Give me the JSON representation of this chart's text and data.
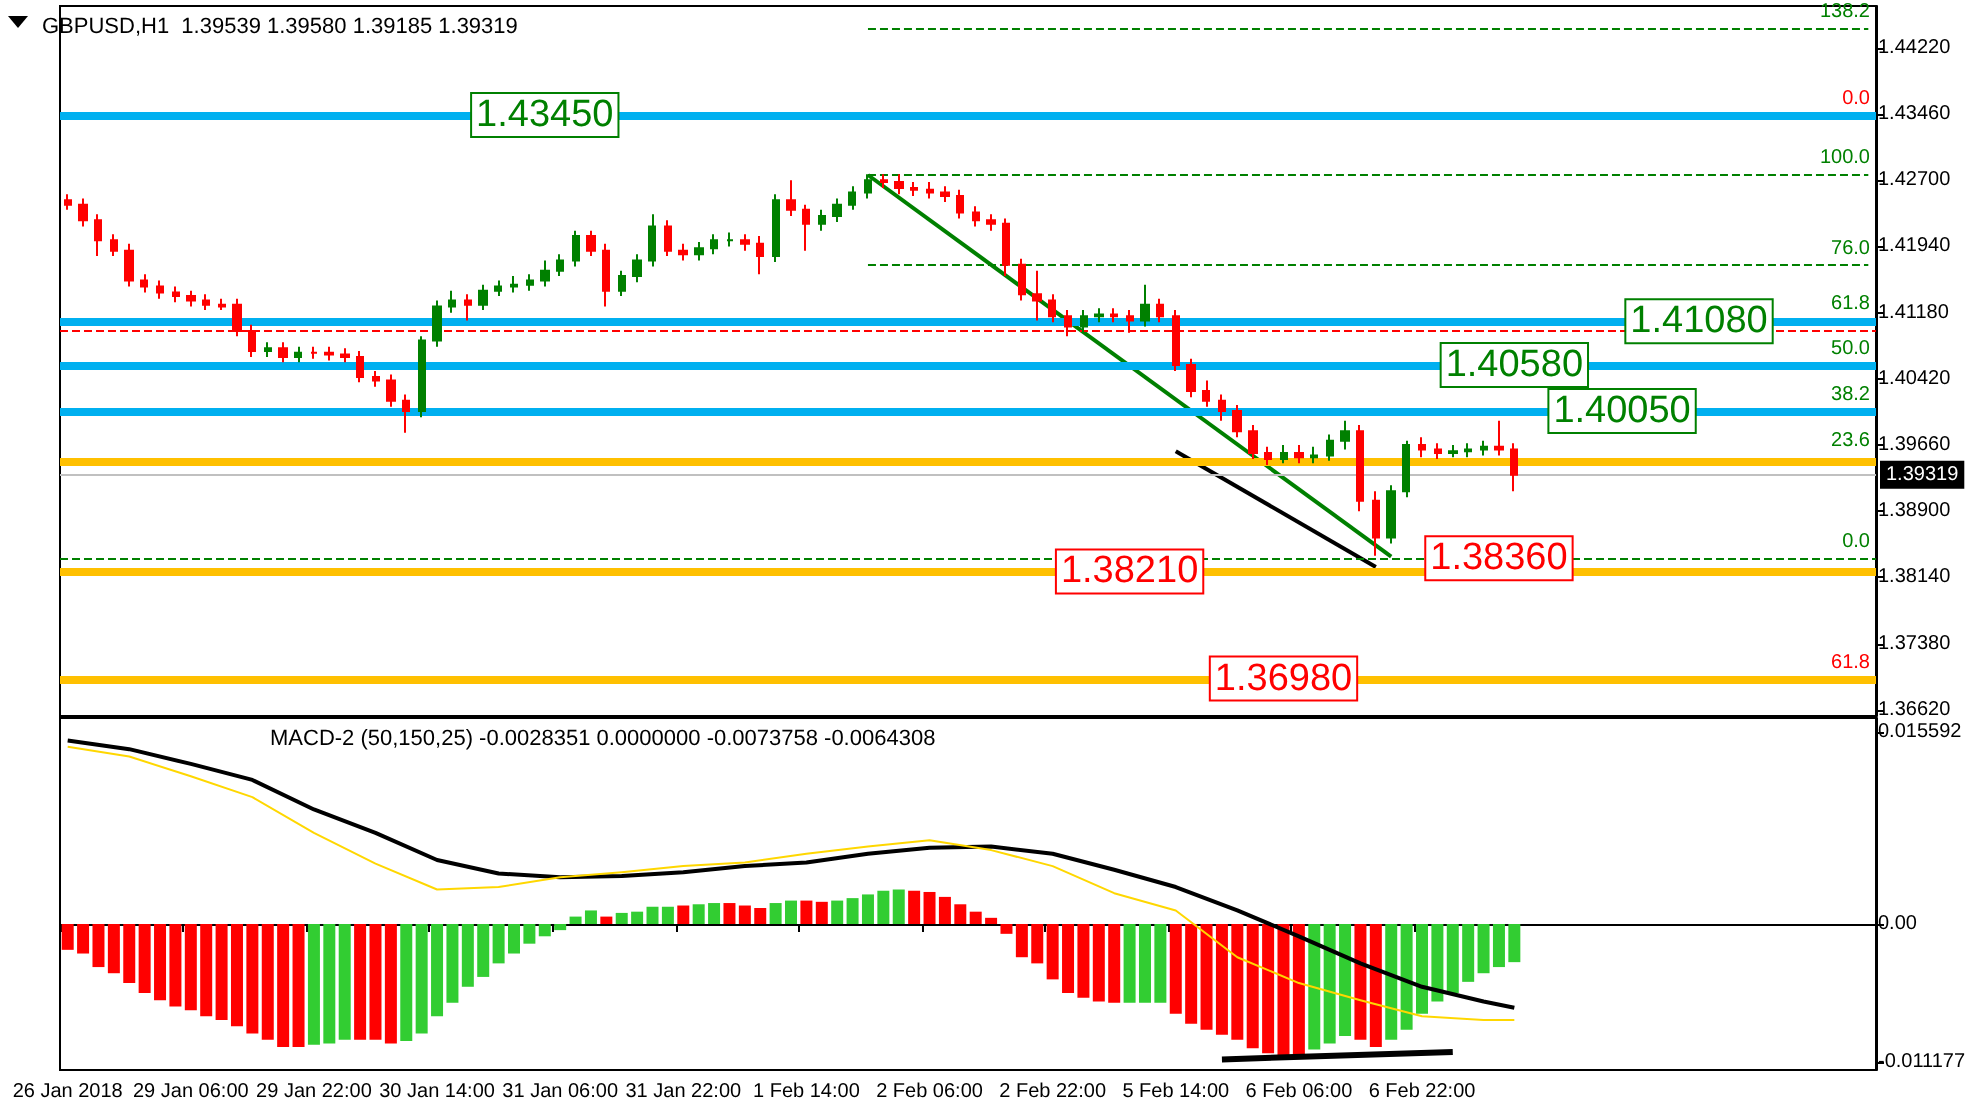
{
  "chart_data": [
    {
      "type": "candlestick",
      "title": "GBPUSD,H1  1.39539 1.39580 1.39185 1.39319",
      "categories": [
        null,
        null,
        null,
        null,
        null,
        null,
        null,
        null,
        null,
        null,
        null,
        null,
        null,
        null,
        null,
        null,
        null,
        null,
        null,
        null,
        null,
        null,
        null,
        null,
        null,
        null,
        null,
        null,
        null,
        null,
        null,
        null,
        null,
        null,
        null,
        null,
        null,
        null,
        null,
        null,
        null,
        null,
        null,
        null,
        null,
        null,
        null,
        null,
        null,
        null,
        null,
        null,
        null,
        null,
        null,
        null,
        null,
        null,
        null,
        null,
        null,
        null,
        null,
        null,
        null,
        null,
        null,
        null,
        null,
        null,
        null,
        null,
        null,
        null,
        null,
        null,
        null,
        null,
        null,
        null,
        null,
        null,
        null,
        null,
        null,
        null,
        null,
        null,
        null,
        null,
        null,
        null,
        null,
        null,
        null,
        null,
        null,
        null,
        null,
        null,
        null,
        null,
        null,
        null,
        null,
        null,
        null,
        null,
        null,
        null,
        null,
        null,
        null,
        null,
        null,
        null,
        null,
        null
      ],
      "ohlc": [
        [
          1.4247,
          1.4254,
          1.4236,
          1.4242
        ],
        [
          1.4242,
          1.4249,
          1.4217,
          1.4224
        ],
        [
          1.4224,
          1.4231,
          1.4183,
          1.4201
        ],
        [
          1.4201,
          1.4208,
          1.4183,
          1.4189
        ],
        [
          1.4189,
          1.4197,
          1.4148,
          1.4155
        ],
        [
          1.4155,
          1.4162,
          1.4141,
          1.4148
        ],
        [
          1.4148,
          1.4155,
          1.4134,
          1.4141
        ],
        [
          1.4141,
          1.4148,
          1.413,
          1.4137
        ],
        [
          1.4137,
          1.4143,
          1.4125,
          1.4132
        ],
        [
          1.4132,
          1.4139,
          1.4121,
          1.4127
        ],
        [
          1.4127,
          1.4134,
          1.4121,
          1.4125
        ],
        [
          1.4127,
          1.4134,
          1.4091,
          1.4097
        ],
        [
          1.4097,
          1.4104,
          1.4067,
          1.4074
        ],
        [
          1.4074,
          1.4084,
          1.4067,
          1.4077
        ],
        [
          1.4077,
          1.4084,
          1.4061,
          1.4067
        ],
        [
          1.4067,
          1.4079,
          1.4061,
          1.4072
        ],
        [
          1.4072,
          1.4079,
          1.4065,
          1.4072
        ],
        [
          1.4072,
          1.4079,
          1.4063,
          1.407
        ],
        [
          1.407,
          1.4077,
          1.4061,
          1.4067
        ],
        [
          1.4067,
          1.4074,
          1.4038,
          1.4044
        ],
        [
          1.4044,
          1.4051,
          1.4033,
          1.404
        ],
        [
          1.404,
          1.4047,
          1.401,
          1.4017
        ],
        [
          1.4017,
          1.4024,
          1.398,
          1.4005
        ],
        [
          1.4005,
          1.4091,
          1.3998,
          1.4086
        ],
        [
          1.4086,
          1.4132,
          1.4079,
          1.4125
        ],
        [
          1.4125,
          1.4143,
          1.4118,
          1.4132
        ],
        [
          1.4132,
          1.4139,
          1.4109,
          1.4127
        ],
        [
          1.4127,
          1.415,
          1.4121,
          1.4143
        ],
        [
          1.4143,
          1.4155,
          1.4137,
          1.4148
        ],
        [
          1.4148,
          1.416,
          1.4141,
          1.415
        ],
        [
          1.415,
          1.4162,
          1.4143,
          1.4155
        ],
        [
          1.4155,
          1.4178,
          1.4148,
          1.4166
        ],
        [
          1.4166,
          1.4185,
          1.416,
          1.4178
        ],
        [
          1.4178,
          1.4212,
          1.4171,
          1.4206
        ],
        [
          1.4206,
          1.4212,
          1.4183,
          1.4189
        ],
        [
          1.4189,
          1.4197,
          1.4125,
          1.4143
        ],
        [
          1.4143,
          1.4166,
          1.4137,
          1.416
        ],
        [
          1.416,
          1.4185,
          1.4153,
          1.4178
        ],
        [
          1.4178,
          1.4231,
          1.4171,
          1.4217
        ],
        [
          1.4217,
          1.4224,
          1.4183,
          1.4189
        ],
        [
          1.4189,
          1.4197,
          1.4178,
          1.4185
        ],
        [
          1.4185,
          1.4199,
          1.4178,
          1.4192
        ],
        [
          1.4192,
          1.4208,
          1.4185,
          1.4201
        ],
        [
          1.4201,
          1.421,
          1.4194,
          1.4201
        ],
        [
          1.4201,
          1.4208,
          1.4189,
          1.4197
        ],
        [
          1.4197,
          1.4206,
          1.4162,
          1.4183
        ],
        [
          1.4183,
          1.4254,
          1.4176,
          1.4247
        ],
        [
          1.4247,
          1.427,
          1.4229,
          1.4236
        ],
        [
          1.4236,
          1.4242,
          1.4189,
          1.422
        ],
        [
          1.422,
          1.4236,
          1.4212,
          1.4229
        ],
        [
          1.4229,
          1.4249,
          1.4222,
          1.4242
        ],
        [
          1.4242,
          1.4263,
          1.4236,
          1.4256
        ],
        [
          1.4256,
          1.4277,
          1.4249,
          1.427
        ],
        [
          1.427,
          1.4277,
          1.4261,
          1.4268
        ],
        [
          1.4268,
          1.4277,
          1.4254,
          1.4261
        ],
        [
          1.4261,
          1.4268,
          1.4252,
          1.4259
        ],
        [
          1.4259,
          1.4268,
          1.4249,
          1.4256
        ],
        [
          1.4256,
          1.4263,
          1.4245,
          1.4252
        ],
        [
          1.4252,
          1.4259,
          1.4226,
          1.4233
        ],
        [
          1.4233,
          1.424,
          1.4217,
          1.4224
        ],
        [
          1.4224,
          1.4231,
          1.4212,
          1.422
        ],
        [
          1.422,
          1.4226,
          1.416,
          1.4173
        ],
        [
          1.4173,
          1.418,
          1.4132,
          1.4139
        ],
        [
          1.4139,
          1.4166,
          1.4109,
          1.4132
        ],
        [
          1.4132,
          1.4139,
          1.4107,
          1.4114
        ],
        [
          1.4114,
          1.4121,
          1.4091,
          1.4102
        ],
        [
          1.4102,
          1.4121,
          1.4095,
          1.4114
        ],
        [
          1.4114,
          1.4123,
          1.4107,
          1.4116
        ],
        [
          1.4116,
          1.4123,
          1.4107,
          1.4114
        ],
        [
          1.4114,
          1.4121,
          1.4095,
          1.4109
        ],
        [
          1.4109,
          1.415,
          1.4102,
          1.4127
        ],
        [
          1.4127,
          1.4134,
          1.4107,
          1.4114
        ],
        [
          1.4114,
          1.4121,
          1.4051,
          1.4058
        ],
        [
          1.4058,
          1.4065,
          1.4021,
          1.4028
        ],
        [
          1.4028,
          1.404,
          1.401,
          1.4017
        ],
        [
          1.4017,
          1.4024,
          1.3994,
          1.4005
        ],
        [
          1.4005,
          1.4012,
          1.3975,
          1.3982
        ],
        [
          1.3982,
          1.3989,
          1.395,
          1.3957
        ],
        [
          1.3957,
          1.3964,
          1.3943,
          1.395
        ],
        [
          1.395,
          1.3966,
          1.3945,
          1.3957
        ],
        [
          1.3957,
          1.3966,
          1.3945,
          1.3952
        ],
        [
          1.3952,
          1.3964,
          1.3945,
          1.3954
        ],
        [
          1.3954,
          1.3978,
          1.3948,
          1.3971
        ],
        [
          1.3971,
          1.3994,
          1.3961,
          1.3982
        ],
        [
          1.3982,
          1.3989,
          1.389,
          1.3902
        ],
        [
          1.3902,
          1.3913,
          1.3839,
          1.386
        ],
        [
          1.386,
          1.392,
          1.3853,
          1.3913
        ],
        [
          1.3913,
          1.3971,
          1.3906,
          1.3966
        ],
        [
          1.3966,
          1.3975,
          1.3952,
          1.3961
        ],
        [
          1.3961,
          1.3968,
          1.395,
          1.3957
        ],
        [
          1.3957,
          1.3966,
          1.3952,
          1.3959
        ],
        [
          1.3959,
          1.3968,
          1.3952,
          1.3961
        ],
        [
          1.3961,
          1.3971,
          1.3954,
          1.3964
        ],
        [
          1.3964,
          1.3994,
          1.3954,
          1.3961
        ],
        [
          1.3961,
          1.3968,
          1.3913,
          1.39319
        ],
        null,
        null,
        null,
        null,
        null,
        null,
        null,
        null,
        null,
        null,
        null,
        null,
        null,
        null,
        null,
        null,
        null,
        null,
        null,
        null,
        null,
        null,
        null
      ],
      "colors": [
        "#ff0000",
        "#ff0000",
        "#ff0000",
        "#ff0000",
        "#ff0000",
        "#ff0000",
        "#ff0000",
        "#ff0000",
        "#ff0000",
        "#ff0000",
        "#ff0000",
        "#ff0000",
        "#ff0000",
        "#008000",
        "#ff0000",
        "#008000",
        "#ff0000",
        "#ff0000",
        "#ff0000",
        "#ff0000",
        "#ff0000",
        "#ff0000",
        "#ff0000",
        "#008000",
        "#008000",
        "#008000",
        "#ff0000",
        "#008000",
        "#008000",
        "#008000",
        "#008000",
        "#008000",
        "#008000",
        "#008000",
        "#ff0000",
        "#ff0000",
        "#008000",
        "#008000",
        "#008000",
        "#ff0000",
        "#ff0000",
        "#008000",
        "#008000",
        "#008000",
        "#ff0000",
        "#ff0000",
        "#008000",
        "#ff0000",
        "#ff0000",
        "#008000",
        "#008000",
        "#008000",
        "#008000",
        "#ff0000",
        "#ff0000",
        "#ff0000",
        "#ff0000",
        "#ff0000",
        "#ff0000",
        "#ff0000",
        "#ff0000",
        "#ff0000",
        "#ff0000",
        "#ff0000",
        "#ff0000",
        "#ff0000",
        "#008000",
        "#008000",
        "#ff0000",
        "#ff0000",
        "#008000",
        "#ff0000",
        "#ff0000",
        "#ff0000",
        "#ff0000",
        "#ff0000",
        "#ff0000",
        "#ff0000",
        "#ff0000",
        "#008000",
        "#ff0000",
        "#008000",
        "#008000",
        "#008000",
        "#ff0000",
        "#ff0000",
        "#008000",
        "#008000",
        "#ff0000",
        "#ff0000",
        "#008000",
        "#008000",
        "#008000",
        "#ff0000",
        "#ff0000",
        null,
        null,
        null,
        null,
        null,
        null,
        null,
        null,
        null,
        null,
        null,
        null,
        null,
        null,
        null,
        null,
        null,
        null,
        null,
        null,
        null,
        null,
        null
      ],
      "series": [
        {
          "type": "line",
          "color": "#008000",
          "values": [
            null,
            null,
            null,
            null,
            null,
            null,
            null,
            null,
            null,
            null,
            null,
            null,
            null,
            null,
            null,
            null,
            null,
            null,
            null,
            null,
            null,
            null,
            null,
            null,
            null,
            null,
            null,
            null,
            null,
            null,
            null,
            null,
            null,
            null,
            null,
            null,
            null,
            null,
            null,
            null,
            null,
            null,
            null,
            null,
            null,
            null,
            null,
            null,
            null,
            null,
            null,
            null,
            1.4276,
            null,
            null,
            null,
            null,
            null,
            null,
            null,
            null,
            null,
            null,
            null,
            null,
            null,
            null,
            null,
            null,
            null,
            null,
            null,
            null,
            null,
            null,
            null,
            null,
            null,
            null,
            null,
            null,
            null,
            null,
            null,
            null,
            null,
            1.3838,
            null,
            null,
            null,
            null,
            null,
            null,
            null,
            null,
            null,
            null,
            null,
            null,
            null,
            null,
            null,
            null,
            null,
            null,
            null,
            null,
            null,
            null,
            null,
            null,
            null,
            null,
            null,
            null,
            null,
            null,
            null
          ]
        },
        {
          "type": "line",
          "color": "#000000",
          "values": [
            null,
            null,
            null,
            null,
            null,
            null,
            null,
            null,
            null,
            null,
            null,
            null,
            null,
            null,
            null,
            null,
            null,
            null,
            null,
            null,
            null,
            null,
            null,
            null,
            null,
            null,
            null,
            null,
            null,
            null,
            null,
            null,
            null,
            null,
            null,
            null,
            null,
            null,
            null,
            null,
            null,
            null,
            null,
            null,
            null,
            null,
            null,
            null,
            null,
            null,
            null,
            null,
            null,
            null,
            null,
            null,
            null,
            null,
            null,
            null,
            null,
            null,
            null,
            null,
            null,
            null,
            null,
            null,
            null,
            null,
            null,
            null,
            1.3959,
            null,
            null,
            null,
            null,
            null,
            null,
            null,
            null,
            null,
            null,
            null,
            null,
            1.3826,
            null,
            null,
            null,
            null,
            null,
            null,
            null,
            null,
            null,
            null,
            null,
            null,
            null,
            null,
            null,
            null,
            null,
            null,
            null,
            null,
            null,
            null,
            null,
            null,
            null,
            null,
            null,
            null,
            null,
            null,
            null,
            null
          ]
        }
      ],
      "marker": "none",
      "ylim": [
        1.3655,
        1.447
      ],
      "yticks": [
        {
          "value": 1.3662,
          "label": "1.36620"
        },
        {
          "value": 1.3738,
          "label": "1.37380"
        },
        {
          "value": 1.3814,
          "label": "1.38140"
        },
        {
          "value": 1.389,
          "label": "1.38900"
        },
        {
          "value": 1.3966,
          "label": "1.39660"
        },
        {
          "value": 1.4042,
          "label": "1.40420"
        },
        {
          "value": 1.4118,
          "label": "1.41180"
        },
        {
          "value": 1.4194,
          "label": "1.41940"
        },
        {
          "value": 1.427,
          "label": "1.42700"
        },
        {
          "value": 1.4346,
          "label": "1.43460"
        },
        {
          "value": 1.4422,
          "label": "1.44220"
        }
      ],
      "tick_labels": "y",
      "ref_lines": [
        {
          "axis": "y",
          "value": 1.4345,
          "label": "1.43450",
          "color": "#00b0f0",
          "line_style": "solid"
        },
        {
          "axis": "y",
          "value": 1.4108,
          "label": "1.41080",
          "color": "#00b0f0",
          "line_style": "solid"
        },
        {
          "axis": "y",
          "value": 1.4058,
          "label": "1.40580",
          "color": "#00b0f0",
          "line_style": "solid"
        },
        {
          "axis": "y",
          "value": 1.4005,
          "label": "1.40050",
          "color": "#00b0f0",
          "line_style": "solid"
        },
        {
          "axis": "y",
          "value": 1.3821,
          "label": "1.38210",
          "color": "#ffc000",
          "line_style": "solid"
        },
        {
          "axis": "y",
          "value": 1.3836,
          "label": "1.38360",
          "color": "#008000",
          "line_style": "dashed"
        },
        {
          "axis": "y",
          "value": 1.3698,
          "label": "1.36980",
          "color": "#ffc000",
          "line_style": "solid"
        },
        {
          "axis": "y",
          "value": 1.3948,
          "color": "#ffc000",
          "line_style": "solid"
        },
        {
          "axis": "y",
          "value": 1.4445,
          "color": "#008000",
          "line_style": "dashed"
        },
        {
          "axis": "y",
          "value": 1.4277,
          "color": "#008000",
          "line_style": "dashed"
        },
        {
          "axis": "y",
          "value": 1.4173,
          "color": "#008000",
          "line_style": "dashed"
        },
        {
          "axis": "y",
          "value": 1.4098,
          "color": "#ff0000",
          "line_style": "dashed"
        },
        {
          "axis": "y",
          "value": 1.39319,
          "label": "1.39319",
          "color": "#c0c0c0",
          "line_style": "solid"
        }
      ],
      "annotations": [
        {
          "text": "138.2",
          "y": 1.4445
        },
        {
          "text": "100.0",
          "y": 1.4277
        },
        {
          "text": "76.0",
          "y": 1.4173
        },
        {
          "text": "61.8",
          "y": 1.4109
        },
        {
          "text": "50.0",
          "y": 1.4058
        },
        {
          "text": "38.2",
          "y": 1.4005
        },
        {
          "text": "23.6",
          "y": 1.3952
        },
        {
          "text": "0.0",
          "y": 1.3836
        },
        {
          "text": "0.0",
          "y": 1.4345
        },
        {
          "text": "61.8",
          "y": 1.3698
        }
      ]
    },
    {
      "type": "bar",
      "title": "MACD-2 (50,150,25) -0.0028351 0.0000000 -0.0073758 -0.0064308",
      "categories": [
        "26 Jan 2018",
        null,
        null,
        null,
        null,
        null,
        null,
        null,
        "29 Jan 06:00",
        null,
        null,
        null,
        null,
        null,
        null,
        null,
        "29 Jan 22:00",
        null,
        null,
        null,
        null,
        null,
        null,
        null,
        "30 Jan 14:00",
        null,
        null,
        null,
        null,
        null,
        null,
        null,
        "31 Jan 06:00",
        null,
        null,
        null,
        null,
        null,
        null,
        null,
        "31 Jan 22:00",
        null,
        null,
        null,
        null,
        null,
        null,
        null,
        "1 Feb 14:00",
        null,
        null,
        null,
        null,
        null,
        null,
        null,
        "2 Feb 06:00",
        null,
        null,
        null,
        null,
        null,
        null,
        null,
        "2 Feb 22:00",
        null,
        null,
        null,
        null,
        null,
        null,
        null,
        "5 Feb 14:00",
        null,
        null,
        null,
        null,
        null,
        null,
        null,
        "6 Feb 06:00",
        null,
        null,
        null,
        null,
        null,
        null,
        null,
        "6 Feb 22:00",
        null,
        null,
        null,
        null,
        null,
        null,
        null,
        null,
        null,
        null,
        null,
        null,
        null,
        null,
        null,
        null,
        null,
        null,
        null,
        null,
        null,
        null,
        null,
        null,
        null,
        null,
        null,
        null,
        null
      ],
      "series": [
        {
          "type": "bar",
          "values": [
            -0.0021,
            -0.0024,
            -0.0035,
            -0.004,
            -0.0048,
            -0.0056,
            -0.0062,
            -0.0067,
            -0.007,
            -0.0075,
            -0.0078,
            -0.0083,
            -0.0089,
            -0.0094,
            -0.01,
            -0.01,
            -0.0098,
            -0.0097,
            -0.0094,
            -0.0094,
            -0.0094,
            -0.0097,
            -0.0095,
            -0.0089,
            -0.0075,
            -0.0064,
            -0.0051,
            -0.0043,
            -0.0032,
            -0.0024,
            -0.0016,
            -0.001,
            -0.0005,
            0.0006,
            0.0011,
            0.0006,
            0.0009,
            0.001,
            0.0014,
            0.0014,
            0.0015,
            0.0016,
            0.0017,
            0.0017,
            0.0015,
            0.0013,
            0.0017,
            0.0019,
            0.0019,
            0.0018,
            0.0019,
            0.0021,
            0.0024,
            0.0027,
            0.0028,
            0.0027,
            0.0026,
            0.0022,
            0.0016,
            0.001,
            0.0005,
            -0.0008,
            -0.0027,
            -0.0032,
            -0.0045,
            -0.0056,
            -0.006,
            -0.0063,
            -0.0064,
            -0.0064,
            -0.0064,
            -0.0064,
            -0.0073,
            -0.0081,
            -0.0086,
            -0.009,
            -0.0094,
            -0.0101,
            -0.0105,
            -0.0107,
            -0.0107,
            -0.0102,
            -0.0097,
            -0.0091,
            -0.0094,
            -0.01,
            -0.0094,
            -0.0086,
            -0.0073,
            -0.0063,
            -0.0056,
            -0.0047,
            -0.004,
            -0.0035,
            -0.0031,
            null,
            null,
            null,
            null,
            null,
            null,
            null,
            null,
            null,
            null,
            null,
            null,
            null,
            null,
            null,
            null,
            null,
            null,
            null,
            null,
            null,
            null,
            null
          ],
          "colors": [
            "#ff0000",
            "#ff0000",
            "#ff0000",
            "#ff0000",
            "#ff0000",
            "#ff0000",
            "#ff0000",
            "#ff0000",
            "#ff0000",
            "#ff0000",
            "#ff0000",
            "#ff0000",
            "#ff0000",
            "#ff0000",
            "#ff0000",
            "#ff0000",
            "#32cd32",
            "#32cd32",
            "#32cd32",
            "#ff0000",
            "#ff0000",
            "#ff0000",
            "#32cd32",
            "#32cd32",
            "#32cd32",
            "#32cd32",
            "#32cd32",
            "#32cd32",
            "#32cd32",
            "#32cd32",
            "#32cd32",
            "#32cd32",
            "#32cd32",
            "#32cd32",
            "#32cd32",
            "#ff0000",
            "#32cd32",
            "#32cd32",
            "#32cd32",
            "#32cd32",
            "#ff0000",
            "#32cd32",
            "#32cd32",
            "#ff0000",
            "#ff0000",
            "#ff0000",
            "#32cd32",
            "#32cd32",
            "#ff0000",
            "#ff0000",
            "#32cd32",
            "#32cd32",
            "#32cd32",
            "#32cd32",
            "#32cd32",
            "#ff0000",
            "#ff0000",
            "#ff0000",
            "#ff0000",
            "#ff0000",
            "#ff0000",
            "#ff0000",
            "#ff0000",
            "#ff0000",
            "#ff0000",
            "#ff0000",
            "#ff0000",
            "#ff0000",
            "#ff0000",
            "#32cd32",
            "#32cd32",
            "#32cd32",
            "#ff0000",
            "#ff0000",
            "#ff0000",
            "#ff0000",
            "#ff0000",
            "#ff0000",
            "#ff0000",
            "#ff0000",
            "#ff0000",
            "#32cd32",
            "#32cd32",
            "#32cd32",
            "#ff0000",
            "#ff0000",
            "#32cd32",
            "#32cd32",
            "#32cd32",
            "#32cd32",
            "#32cd32",
            "#32cd32",
            "#32cd32",
            "#32cd32",
            "#32cd32",
            null,
            null,
            null,
            null,
            null,
            null,
            null,
            null,
            null,
            null,
            null,
            null,
            null,
            null,
            null,
            null,
            null,
            null,
            null,
            null,
            null,
            null,
            null
          ]
        },
        {
          "type": "line",
          "color": "#000000",
          "values": [
            0.0149,
            null,
            null,
            null,
            0.0142,
            null,
            null,
            null,
            0.013,
            null,
            null,
            null,
            0.0117,
            null,
            null,
            null,
            0.0093,
            null,
            null,
            null,
            0.0074,
            null,
            null,
            null,
            0.0052,
            null,
            null,
            null,
            0.0041,
            null,
            null,
            null,
            0.0038,
            null,
            null,
            null,
            0.0039,
            null,
            null,
            null,
            0.0042,
            null,
            null,
            null,
            0.0047,
            null,
            null,
            null,
            0.005,
            null,
            null,
            null,
            0.0057,
            null,
            null,
            null,
            0.0062,
            null,
            null,
            null,
            0.0063,
            null,
            null,
            null,
            0.0057,
            null,
            null,
            null,
            0.0044,
            null,
            null,
            null,
            0.003,
            null,
            null,
            null,
            0.0011,
            null,
            null,
            null,
            -0.001,
            null,
            null,
            null,
            -0.0032,
            null,
            null,
            null,
            -0.0051,
            null,
            null,
            null,
            -0.0063,
            null,
            -0.0068,
            null,
            null,
            null,
            null,
            null,
            null,
            null,
            null,
            null,
            null,
            null,
            null,
            null,
            null,
            null,
            null,
            null,
            null,
            null,
            null,
            null,
            null,
            null
          ]
        },
        {
          "type": "line",
          "color": "#ffd700",
          "values": [
            0.0144,
            null,
            null,
            null,
            0.0136,
            null,
            null,
            null,
            0.012,
            null,
            null,
            null,
            0.0103,
            null,
            null,
            null,
            0.0074,
            null,
            null,
            null,
            0.0049,
            null,
            null,
            null,
            0.0028,
            null,
            null,
            null,
            0.003,
            null,
            null,
            null,
            0.0038,
            null,
            null,
            null,
            0.0042,
            null,
            null,
            null,
            0.0047,
            null,
            null,
            null,
            0.005,
            null,
            null,
            null,
            0.0057,
            null,
            null,
            null,
            0.0063,
            null,
            null,
            null,
            0.0068,
            null,
            null,
            null,
            0.006,
            null,
            null,
            null,
            0.0047,
            null,
            null,
            null,
            0.0025,
            null,
            null,
            null,
            0.0011,
            null,
            null,
            null,
            -0.0027,
            null,
            null,
            null,
            -0.0048,
            null,
            null,
            null,
            -0.0062,
            null,
            null,
            null,
            -0.0075,
            null,
            null,
            null,
            -0.0078,
            null,
            -0.0078,
            null,
            null,
            null,
            null,
            null,
            null,
            null,
            null,
            null,
            null,
            null,
            null,
            null,
            null,
            null,
            null,
            null,
            null,
            null,
            null,
            null,
            null,
            null
          ]
        },
        {
          "type": "line",
          "color": "#000000",
          "values": [
            null,
            null,
            null,
            null,
            null,
            null,
            null,
            null,
            null,
            null,
            null,
            null,
            null,
            null,
            null,
            null,
            null,
            null,
            null,
            null,
            null,
            null,
            null,
            null,
            null,
            null,
            null,
            null,
            null,
            null,
            null,
            null,
            null,
            null,
            null,
            null,
            null,
            null,
            null,
            null,
            null,
            null,
            null,
            null,
            null,
            null,
            null,
            null,
            null,
            null,
            null,
            null,
            null,
            null,
            null,
            null,
            null,
            null,
            null,
            null,
            null,
            null,
            null,
            null,
            null,
            null,
            null,
            null,
            null,
            null,
            null,
            null,
            null,
            null,
            null,
            -0.011,
            null,
            null,
            null,
            null,
            null,
            null,
            null,
            null,
            null,
            null,
            null,
            null,
            null,
            null,
            -0.0104,
            null,
            null,
            null,
            null,
            null,
            null,
            null,
            null,
            null,
            null,
            null,
            null,
            null,
            null,
            null,
            null,
            null,
            null,
            null,
            null,
            null,
            null,
            null,
            null,
            null,
            null,
            null
          ]
        }
      ],
      "marker": "none",
      "ylim": [
        -0.01186,
        0.01673
      ],
      "yticks": [
        {
          "value": -0.011177,
          "label": "-0.011177"
        },
        {
          "value": 0,
          "label": "0.00"
        },
        {
          "value": 0.015592,
          "label": "0.015592"
        }
      ]
    }
  ]
}
